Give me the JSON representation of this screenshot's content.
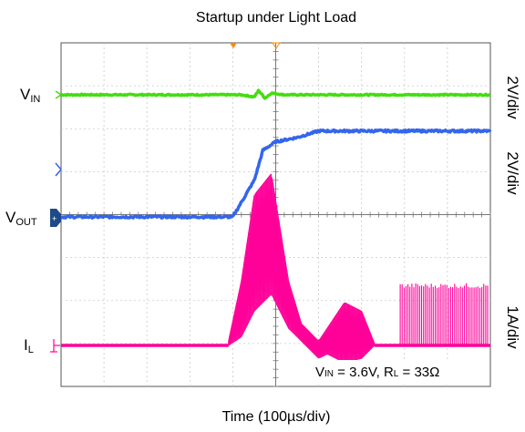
{
  "chart_data": {
    "type": "line",
    "title": "Startup under Light Load",
    "xlabel": "Time (100µs/div)",
    "annotation": {
      "prefix1": "V",
      "sub1": "IN",
      "text1": " = 3.6V, ",
      "prefix2": "R",
      "sub2": "L",
      "text2": " = 33Ω"
    },
    "grid": {
      "divisions_x": 10,
      "divisions_y": 8,
      "visible": true
    },
    "channels": [
      {
        "name": "VIN",
        "label_main": "V",
        "label_sub": "IN",
        "scale": "2V/div",
        "color": "#44dd11"
      },
      {
        "name": "VOUT",
        "label_main": "V",
        "label_sub": "OUT",
        "scale": "2V/div",
        "color": "#3366ee"
      },
      {
        "name": "IL",
        "label_main": "I",
        "label_sub": "L",
        "scale": "1A/div",
        "color": "#ff0099"
      }
    ],
    "trace_divs": {
      "vin": {
        "x": [
          0,
          4.2,
          4.5,
          4.6,
          4.75,
          4.9,
          5.2,
          10
        ],
        "y": [
          0,
          0,
          -0.05,
          0.1,
          -0.08,
          0.04,
          0,
          0
        ]
      },
      "vout": {
        "x": [
          0,
          4.0,
          4.5,
          4.7,
          5.0,
          5.5,
          6.0,
          10
        ],
        "y": [
          0,
          0,
          0.85,
          1.55,
          1.75,
          1.85,
          2.0,
          2.0
        ]
      },
      "il_envelope_upper": {
        "x": [
          3.9,
          4.2,
          4.5,
          4.9,
          5.3,
          5.6,
          6.0,
          6.2,
          6.6,
          7.0,
          7.3
        ],
        "y": [
          0.1,
          1.5,
          3.5,
          4.0,
          1.5,
          0.5,
          0.1,
          0.4,
          1.0,
          0.8,
          0.05
        ]
      },
      "il_envelope_lower": {
        "x": [
          3.9,
          4.2,
          4.5,
          4.9,
          5.3,
          5.6,
          6.0,
          6.2,
          6.6,
          7.0,
          7.3
        ],
        "y": [
          0,
          0.2,
          0.8,
          1.2,
          0.4,
          0.1,
          -0.3,
          -0.2,
          -0.4,
          -0.3,
          0
        ]
      },
      "il_pulse_region": {
        "x_start": 7.9,
        "x_end": 10,
        "pulse_height_div": 1.45,
        "pulse_count": 46
      }
    }
  }
}
